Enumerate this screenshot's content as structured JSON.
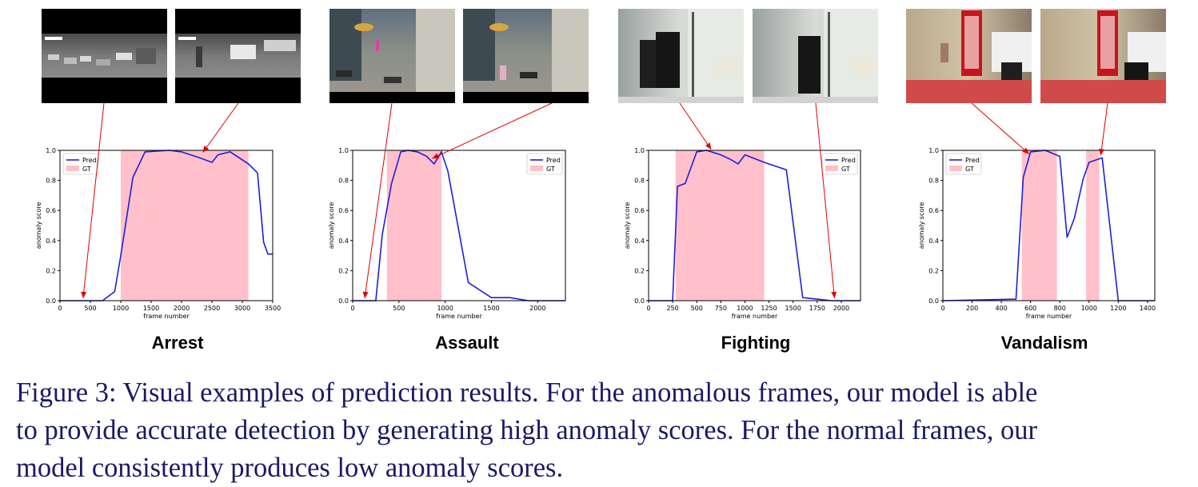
{
  "caption": {
    "lines": [
      "Figure 3: Visual examples of prediction results. For the anomalous frames, our model is able",
      "to provide accurate detection by generating high anomaly scores. For the normal frames, our",
      "model consistently produces low anomaly scores."
    ]
  },
  "colors": {
    "pred_line": "#1f1fd6",
    "gt_fill": "#ffc0cb",
    "arrow": "#e00000"
  },
  "chart_data": [
    {
      "type": "line",
      "title": "Arrest",
      "xlabel": "frame number",
      "ylabel": "anomaly score",
      "xlim": [
        0,
        3500
      ],
      "ylim": [
        0,
        1.0
      ],
      "xticks": [
        0,
        500,
        1000,
        1500,
        2000,
        2500,
        3000,
        3500
      ],
      "yticks": [
        0.0,
        0.2,
        0.4,
        0.6,
        0.8,
        1.0
      ],
      "legend_location": "upper-left",
      "legend": [
        "Pred",
        "GT"
      ],
      "gt_intervals": [
        [
          1000,
          3100
        ]
      ],
      "series": [
        {
          "name": "Pred",
          "x": [
            0,
            700,
            900,
            1000,
            1200,
            1400,
            1800,
            2000,
            2300,
            2500,
            2600,
            2800,
            3100,
            3250,
            3350,
            3420,
            3500
          ],
          "y": [
            0.0,
            0.0,
            0.06,
            0.3,
            0.82,
            0.99,
            1.0,
            0.99,
            0.95,
            0.92,
            0.97,
            0.99,
            0.91,
            0.85,
            0.39,
            0.31,
            0.31
          ]
        }
      ]
    },
    {
      "type": "line",
      "title": "Assault",
      "xlabel": "frame number",
      "ylabel": "anomaly score",
      "xlim": [
        0,
        2300
      ],
      "ylim": [
        0,
        1.0
      ],
      "xticks": [
        0,
        500,
        1000,
        1500,
        2000
      ],
      "yticks": [
        0.0,
        0.2,
        0.4,
        0.6,
        0.8,
        1.0
      ],
      "legend_location": "upper-right",
      "legend": [
        "Pred",
        "GT"
      ],
      "gt_intervals": [
        [
          370,
          960
        ]
      ],
      "series": [
        {
          "name": "Pred",
          "x": [
            0,
            250,
            320,
            420,
            520,
            600,
            700,
            800,
            880,
            960,
            1030,
            1250,
            1500,
            1700,
            1900,
            2300
          ],
          "y": [
            0.0,
            0.0,
            0.44,
            0.78,
            0.99,
            1.0,
            0.99,
            0.96,
            0.91,
            0.99,
            0.86,
            0.12,
            0.02,
            0.02,
            0.0,
            0.0
          ]
        }
      ]
    },
    {
      "type": "line",
      "title": "Fighting",
      "xlabel": "frame number",
      "ylabel": "anomaly score",
      "xlim": [
        0,
        2200
      ],
      "ylim": [
        0,
        1.0
      ],
      "xticks": [
        0,
        250,
        500,
        750,
        1000,
        1250,
        1500,
        1750,
        2000
      ],
      "yticks": [
        0.0,
        0.2,
        0.4,
        0.6,
        0.8,
        1.0
      ],
      "legend_location": "upper-right",
      "legend": [
        "Pred",
        "GT"
      ],
      "gt_intervals": [
        [
          280,
          1200
        ]
      ],
      "series": [
        {
          "name": "Pred",
          "x": [
            0,
            250,
            300,
            380,
            500,
            600,
            750,
            850,
            930,
            1000,
            1200,
            1430,
            1600,
            1750,
            1900,
            2200
          ],
          "y": [
            0.0,
            0.0,
            0.76,
            0.78,
            0.99,
            1.0,
            0.97,
            0.94,
            0.91,
            0.97,
            0.92,
            0.87,
            0.02,
            0.01,
            0.0,
            0.0
          ]
        }
      ]
    },
    {
      "type": "line",
      "title": "Vandalism",
      "xlabel": "frame number",
      "ylabel": "anomaly score",
      "xlim": [
        0,
        1450
      ],
      "ylim": [
        0,
        1.0
      ],
      "xticks": [
        0,
        200,
        400,
        600,
        800,
        1000,
        1200,
        1400
      ],
      "yticks": [
        0.0,
        0.2,
        0.4,
        0.6,
        0.8,
        1.0
      ],
      "legend_location": "upper-left",
      "legend": [
        "Pred",
        "GT"
      ],
      "gt_intervals": [
        [
          540,
          780
        ],
        [
          980,
          1070
        ]
      ],
      "series": [
        {
          "name": "Pred",
          "x": [
            0,
            500,
            550,
            600,
            700,
            800,
            850,
            900,
            960,
            1000,
            1090,
            1200,
            1450
          ],
          "y": [
            0.0,
            0.01,
            0.82,
            0.99,
            1.0,
            0.96,
            0.42,
            0.55,
            0.81,
            0.92,
            0.95,
            0.0,
            0.0
          ]
        }
      ]
    }
  ]
}
